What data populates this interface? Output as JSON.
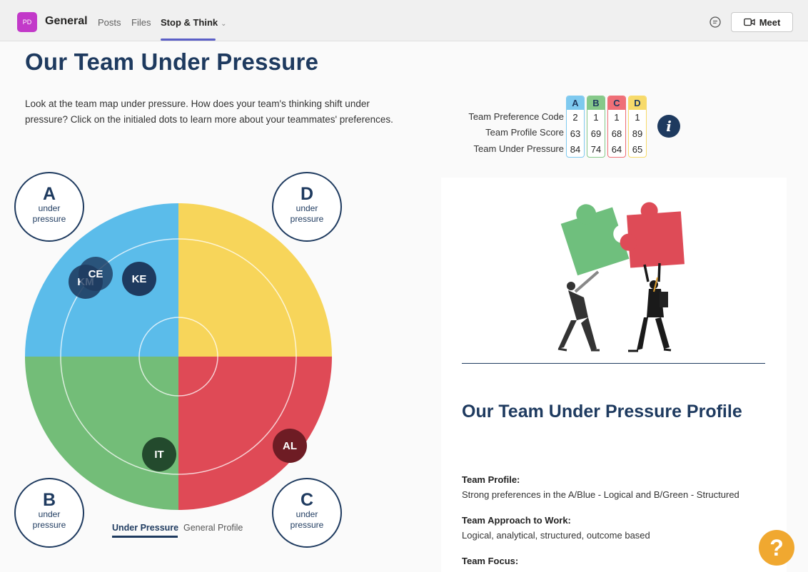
{
  "header": {
    "avatar_initials": "PD",
    "channel_name": "General",
    "tabs": [
      {
        "label": "Posts"
      },
      {
        "label": "Files"
      },
      {
        "label": "Stop & Think"
      }
    ],
    "meet_label": "Meet"
  },
  "main": {
    "title": "Our Team Under Pressure",
    "intro": "Look at the team map under pressure. How does your team's thinking shift under pressure? Click on the initialed dots to learn more about your teammates' preferences."
  },
  "preference_table": {
    "columns": [
      {
        "letter": "A",
        "color": "#7ec9ef",
        "values": [
          "2",
          "63",
          "84"
        ]
      },
      {
        "letter": "B",
        "color": "#86c98a",
        "values": [
          "1",
          "69",
          "74"
        ]
      },
      {
        "letter": "C",
        "color": "#ef6f77",
        "values": [
          "1",
          "68",
          "64"
        ]
      },
      {
        "letter": "D",
        "color": "#f7da6a",
        "values": [
          "1",
          "89",
          "65"
        ]
      }
    ],
    "row_labels": [
      "Team Preference Code",
      "Team Profile Score",
      "Team Under Pressure"
    ],
    "info_icon": "info-icon"
  },
  "team_map": {
    "quadrants": [
      {
        "letter": "A",
        "sub1": "under",
        "sub2": "pressure",
        "color": "#5bbcea"
      },
      {
        "letter": "D",
        "sub1": "under",
        "sub2": "pressure",
        "color": "#f7d55a"
      },
      {
        "letter": "B",
        "sub1": "under",
        "sub2": "pressure",
        "color": "#73bd78"
      },
      {
        "letter": "C",
        "sub1": "under",
        "sub2": "pressure",
        "color": "#df4a56"
      }
    ],
    "dots": [
      {
        "initials": "KM"
      },
      {
        "initials": "CE"
      },
      {
        "initials": "KE"
      },
      {
        "initials": "IT"
      },
      {
        "initials": "AL"
      }
    ],
    "view_tabs": [
      {
        "label": "Under Pressure"
      },
      {
        "label": "General Profile"
      }
    ]
  },
  "profile_panel": {
    "title": "Our Team Under Pressure Profile",
    "fields": [
      {
        "label": "Team Profile:",
        "value": "Strong preferences in the A/Blue - Logical and B/Green - Structured"
      },
      {
        "label": "Team Approach to Work:",
        "value": "Logical, analytical, structured, outcome based"
      },
      {
        "label": "Team Focus:",
        "value": ""
      }
    ]
  },
  "help_label": "?"
}
